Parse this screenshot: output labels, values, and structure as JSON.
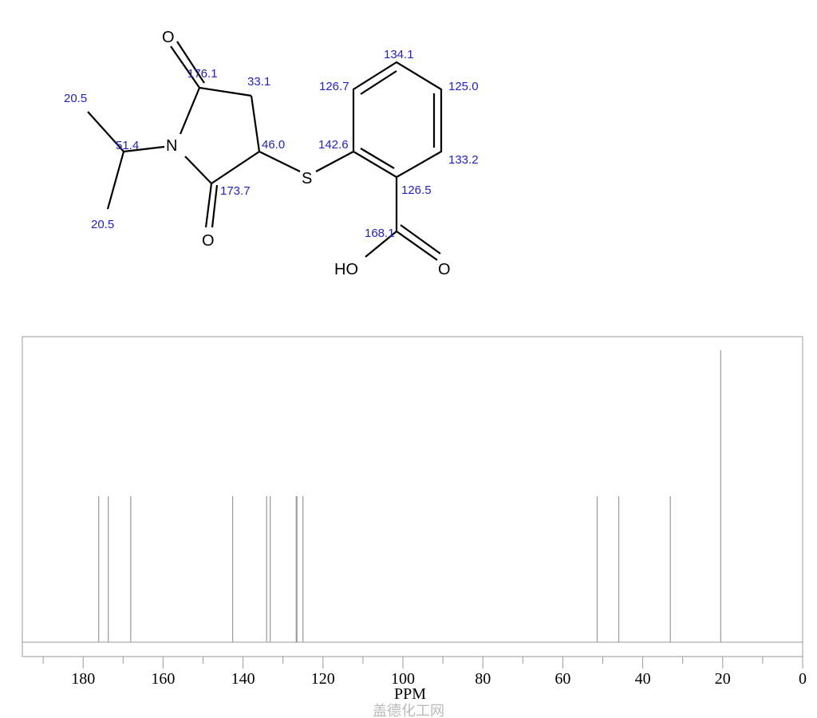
{
  "molecule": {
    "atoms": {
      "O_top": "O",
      "N": "N",
      "O_bottom": "O",
      "S": "S",
      "O_acid": "O",
      "HO": "HO"
    },
    "shift_labels": [
      {
        "id": "c176",
        "text": "176.1"
      },
      {
        "id": "c33",
        "text": "33.1"
      },
      {
        "id": "c46",
        "text": "46.0"
      },
      {
        "id": "c1737",
        "text": "173.7"
      },
      {
        "id": "c514",
        "text": "51.4"
      },
      {
        "id": "me1",
        "text": "20.5"
      },
      {
        "id": "me2",
        "text": "20.5"
      },
      {
        "id": "c1426",
        "text": "142.6"
      },
      {
        "id": "c1267",
        "text": "126.7"
      },
      {
        "id": "c1341",
        "text": "134.1"
      },
      {
        "id": "c1250",
        "text": "125.0"
      },
      {
        "id": "c1332",
        "text": "133.2"
      },
      {
        "id": "c1265",
        "text": "126.5"
      },
      {
        "id": "c1681",
        "text": "168.1"
      }
    ]
  },
  "chart_data": {
    "type": "bar",
    "xlabel": "PPM",
    "xlim": [
      195,
      0
    ],
    "x_reversed": true,
    "xticks": [
      180,
      160,
      140,
      120,
      100,
      80,
      60,
      40,
      20,
      0
    ],
    "peaks": [
      {
        "ppm": 176.1,
        "intensity": 1
      },
      {
        "ppm": 173.7,
        "intensity": 1
      },
      {
        "ppm": 168.1,
        "intensity": 1
      },
      {
        "ppm": 142.6,
        "intensity": 1
      },
      {
        "ppm": 134.1,
        "intensity": 1
      },
      {
        "ppm": 133.2,
        "intensity": 1
      },
      {
        "ppm": 126.7,
        "intensity": 1
      },
      {
        "ppm": 126.5,
        "intensity": 1
      },
      {
        "ppm": 125.0,
        "intensity": 1
      },
      {
        "ppm": 51.4,
        "intensity": 1
      },
      {
        "ppm": 46.0,
        "intensity": 1
      },
      {
        "ppm": 33.1,
        "intensity": 1
      },
      {
        "ppm": 20.5,
        "intensity": 2
      }
    ],
    "colors": {
      "peak": "#999999",
      "axis": "#999999",
      "label": "#2222cc"
    }
  },
  "watermark": "盖德化工网"
}
